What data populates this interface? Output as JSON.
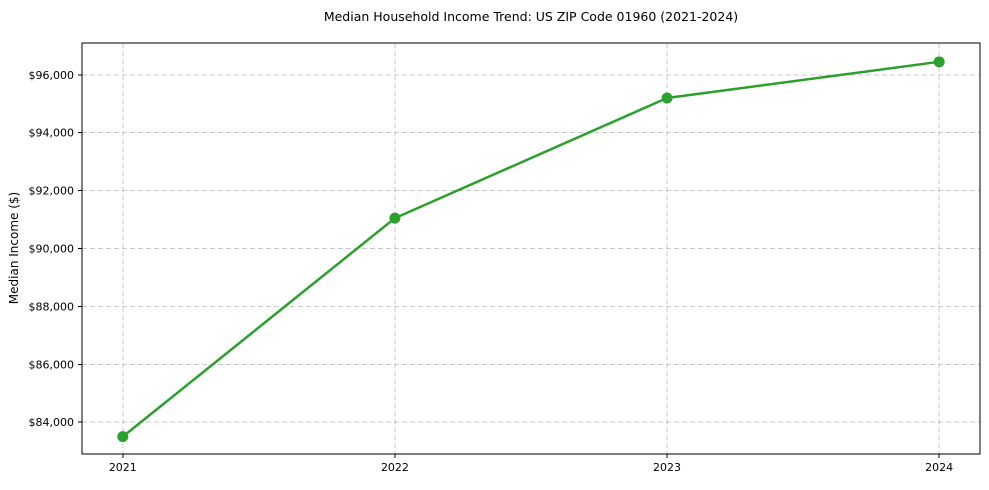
{
  "chart_data": {
    "type": "line",
    "title": "Median Household Income Trend: US ZIP Code 01960 (2021-2024)",
    "xlabel": "",
    "ylabel": "Median Income ($)",
    "x": [
      2021,
      2022,
      2023,
      2024
    ],
    "series": [
      {
        "name": "Median Household Income",
        "values": [
          83500,
          91050,
          95200,
          96450
        ],
        "color": "#2ca02c",
        "marker": "circle"
      }
    ],
    "xticks": [
      {
        "value": 2021,
        "label": "2021"
      },
      {
        "value": 2022,
        "label": "2022"
      },
      {
        "value": 2023,
        "label": "2023"
      },
      {
        "value": 2024,
        "label": "2024"
      }
    ],
    "yticks": [
      {
        "value": 84000,
        "label": "$84,000"
      },
      {
        "value": 86000,
        "label": "$86,000"
      },
      {
        "value": 88000,
        "label": "$88,000"
      },
      {
        "value": 90000,
        "label": "$90,000"
      },
      {
        "value": 92000,
        "label": "$92,000"
      },
      {
        "value": 94000,
        "label": "$94,000"
      },
      {
        "value": 96000,
        "label": "$96,000"
      }
    ],
    "xlim": [
      2020.85,
      2024.15
    ],
    "ylim": [
      82900,
      97100
    ],
    "grid": true,
    "grid_style": "dashed",
    "grid_color": "#c9c9c9",
    "frame_color": "#000000",
    "background_color": "#ffffff",
    "legend": "none"
  }
}
